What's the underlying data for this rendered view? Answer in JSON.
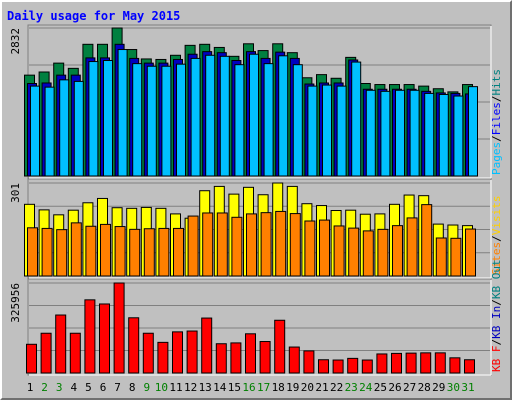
{
  "chart_data": {
    "type": "bar",
    "title": "Daily usage for May 2015",
    "days": [
      "1",
      "2",
      "3",
      "4",
      "5",
      "6",
      "7",
      "8",
      "9",
      "10",
      "11",
      "12",
      "13",
      "14",
      "15",
      "16",
      "17",
      "18",
      "19",
      "20",
      "21",
      "22",
      "23",
      "24",
      "25",
      "26",
      "27",
      "28",
      "29",
      "30",
      "31"
    ],
    "weekend_days": [
      2,
      3,
      9,
      10,
      16,
      17,
      23,
      24,
      30,
      31
    ],
    "panels": [
      {
        "max_label": "2832",
        "ymax": 2832,
        "series": [
          {
            "name": "Hits",
            "values": [
              1930,
              1990,
              2160,
              2060,
              2520,
              2520,
              2832,
              2420,
              2240,
              2230,
              2310,
              2500,
              2520,
              2460,
              2290,
              2530,
              2400,
              2530,
              2360,
              1880,
              1940,
              1870,
              2270,
              1770,
              1750,
              1750,
              1750,
              1720,
              1670,
              1610,
              1750
            ]
          },
          {
            "name": "Files",
            "values": [
              1770,
              1780,
              1930,
              1930,
              2260,
              2260,
              2520,
              2250,
              2160,
              2160,
              2230,
              2330,
              2380,
              2360,
              2210,
              2380,
              2250,
              2370,
              2250,
              1760,
              1780,
              1780,
              2220,
              1660,
              1660,
              1660,
              1660,
              1620,
              1590,
              1580,
              1570
            ]
          },
          {
            "name": "Pages",
            "values": [
              1720,
              1700,
              1840,
              1810,
              2190,
              2210,
              2420,
              2150,
              2100,
              2100,
              2140,
              2250,
              2310,
              2290,
              2130,
              2330,
              2150,
              2300,
              2130,
              1720,
              1740,
              1720,
              2180,
              1640,
              1620,
              1640,
              1640,
              1580,
              1560,
              1530,
              1710
            ]
          }
        ]
      },
      {
        "max_label": "301",
        "ymax": 301,
        "series": [
          {
            "name": "Visits",
            "values": [
              232,
              214,
              198,
              213,
              237,
              251,
              221,
              219,
              222,
              219,
              201,
              187,
              276,
              290,
              265,
              287,
              263,
              301,
              290,
              234,
              228,
              212,
              213,
              200,
              201,
              232,
              262,
              260,
              168,
              165,
              163
            ]
          },
          {
            "name": "Sites",
            "values": [
              156,
              154,
              150,
              172,
              161,
              167,
              160,
              151,
              153,
              154,
              154,
              194,
              204,
              204,
              190,
              201,
              205,
              209,
              202,
              178,
              181,
              162,
              155,
              146,
              151,
              163,
              188,
              231,
              123,
              122,
              152
            ]
          }
        ]
      },
      {
        "max_label": "325956",
        "ymax": 325956,
        "series": [
          {
            "name": "KB F",
            "values": [
              104000,
              144000,
              210000,
              144000,
              265000,
              250000,
              325956,
              200000,
              144000,
              111000,
              149000,
              152000,
              199000,
              106000,
              109000,
              142000,
              114000,
              191000,
              94000,
              80000,
              48000,
              47000,
              53000,
              47000,
              69000,
              71000,
              72000,
              73000,
              73000,
              55000,
              48000
            ]
          }
        ]
      }
    ],
    "legends": [
      [
        {
          "text": "Pages",
          "color": "#00c0ff"
        },
        {
          "text": "/",
          "color": "#000000"
        },
        {
          "text": "Files",
          "color": "#0000ff"
        },
        {
          "text": "/",
          "color": "#000000"
        },
        {
          "text": "Hits",
          "color": "#008080"
        }
      ],
      [
        {
          "text": "Sites",
          "color": "#ff8000"
        },
        {
          "text": "/",
          "color": "#000000"
        },
        {
          "text": "Visits",
          "color": "#ffd000"
        }
      ],
      [
        {
          "text": "KB F",
          "color": "#ff0000"
        },
        {
          "text": "/",
          "color": "#000000"
        },
        {
          "text": "KB In",
          "color": "#0000c0"
        },
        {
          "text": "/",
          "color": "#000000"
        },
        {
          "text": "KB Out",
          "color": "#008080"
        }
      ]
    ],
    "colors": {
      "hits": "#008040",
      "files": "#0000c0",
      "pages": "#00c0ff",
      "visits": "#ffff00",
      "sites": "#ff8000",
      "kbf": "#ff0000",
      "title": "#0000ff",
      "weekday_label": "#000000",
      "weekend_label": "#008000"
    }
  }
}
